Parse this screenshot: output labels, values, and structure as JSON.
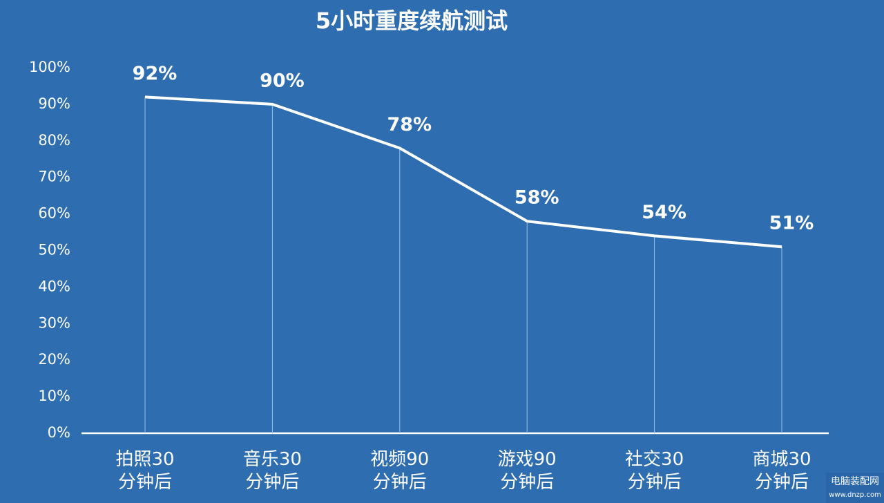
{
  "chart_data": {
    "type": "line",
    "title": "5小时重度续航测试",
    "categories": [
      "拍照30\n分钟后",
      "音乐30\n分钟后",
      "视频90\n分钟后",
      "游戏90\n分钟后",
      "社交30\n分钟后",
      "商城30\n分钟后"
    ],
    "values": [
      92,
      90,
      78,
      58,
      54,
      51
    ],
    "value_labels": [
      "92%",
      "90%",
      "78%",
      "58%",
      "54%",
      "51%"
    ],
    "color": "#ffffff",
    "ylim": [
      0,
      100
    ],
    "yticks": [
      {
        "value": 0,
        "label": "0%"
      },
      {
        "value": 10,
        "label": "10%"
      },
      {
        "value": 20,
        "label": "20%"
      },
      {
        "value": 30,
        "label": "30%"
      },
      {
        "value": 40,
        "label": "40%"
      },
      {
        "value": 50,
        "label": "50%"
      },
      {
        "value": 60,
        "label": "60%"
      },
      {
        "value": 70,
        "label": "70%"
      },
      {
        "value": 80,
        "label": "80%"
      },
      {
        "value": 90,
        "label": "90%"
      },
      {
        "value": 100,
        "label": "100%"
      }
    ],
    "drop_lines": true,
    "grid": false
  },
  "watermark": {
    "title": "电脑装配网",
    "url": "www.dnzp.com"
  }
}
